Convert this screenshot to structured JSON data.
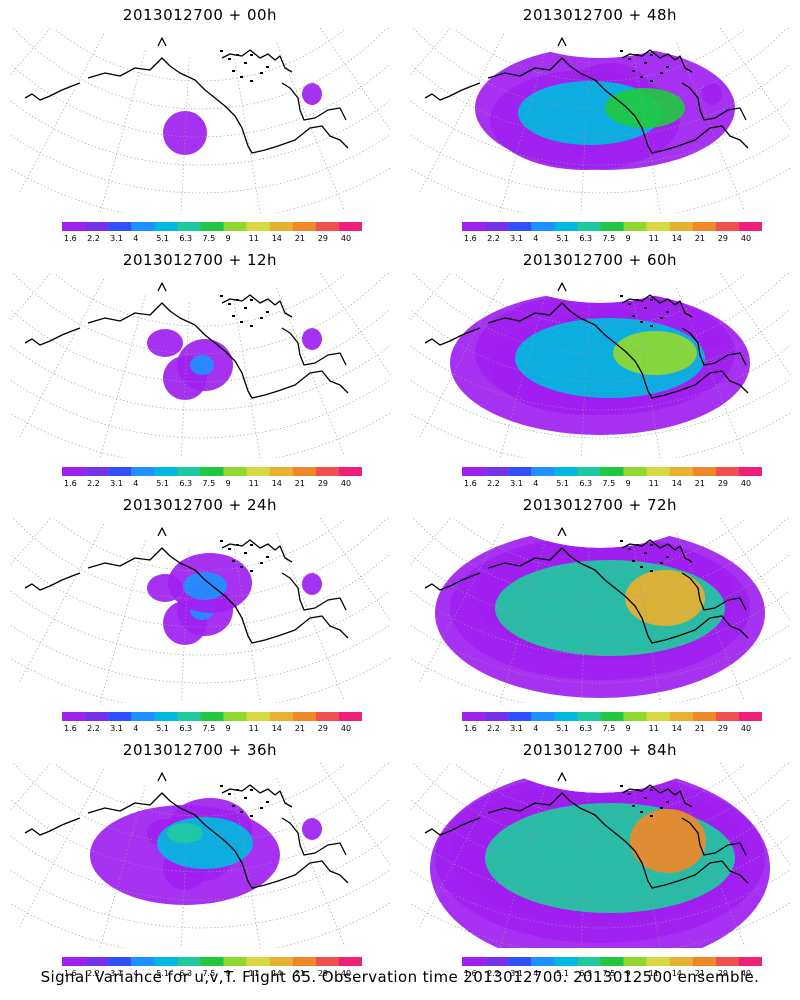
{
  "panels": [
    {
      "title": "2013012700 + 00h",
      "level": 1
    },
    {
      "title": "2013012700 + 48h",
      "level": 5
    },
    {
      "title": "2013012700 + 12h",
      "level": 2
    },
    {
      "title": "2013012700 + 60h",
      "level": 6
    },
    {
      "title": "2013012700 + 24h",
      "level": 3
    },
    {
      "title": "2013012700 + 72h",
      "level": 7
    },
    {
      "title": "2013012700 + 36h",
      "level": 4
    },
    {
      "title": "2013012700 + 84h",
      "level": 8
    }
  ],
  "colorbar": {
    "labels": [
      "1.6",
      "2.2",
      "3.1",
      "4",
      "5.1",
      "6.3",
      "7.5",
      "9",
      "11",
      "14",
      "21",
      "29",
      "40"
    ],
    "colors": [
      "#a020f0",
      "#7830e8",
      "#3050ff",
      "#1e90ff",
      "#00b8e0",
      "#20c8a0",
      "#20c840",
      "#90d830",
      "#d8d840",
      "#e8b030",
      "#f08828",
      "#f05050",
      "#f0207a"
    ]
  },
  "caption": "Signal Variance for u,v,T. Flight 65. Observation time 2013012700. 2013012500 ensemble."
}
